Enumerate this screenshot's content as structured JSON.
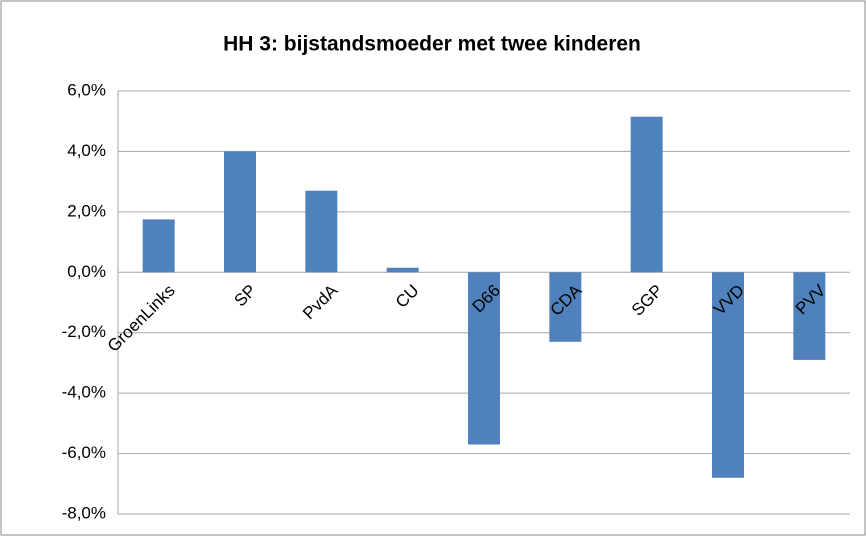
{
  "chart_data": {
    "type": "bar",
    "title": "HH 3:  bijstandsmoeder met twee kinderen",
    "categories": [
      "GroenLinks",
      "SP",
      "PvdA",
      "CU",
      "D66",
      "CDA",
      "SGP",
      "VVD",
      "PVV"
    ],
    "values": [
      1.75,
      4.0,
      2.7,
      0.15,
      -5.7,
      -2.3,
      5.15,
      -6.8,
      -2.9
    ],
    "color": "#4f81bd",
    "ylim": [
      -8,
      6
    ],
    "yticks": [
      {
        "value": -8,
        "label": "-8,0%"
      },
      {
        "value": -6,
        "label": "-6,0%"
      },
      {
        "value": -4,
        "label": "-4,0%"
      },
      {
        "value": -2,
        "label": "-2,0%"
      },
      {
        "value": 0,
        "label": "0,0%"
      },
      {
        "value": 2,
        "label": "2,0%"
      },
      {
        "value": 4,
        "label": "4,0%"
      },
      {
        "value": 6,
        "label": "6,0%"
      }
    ],
    "grid": true
  }
}
